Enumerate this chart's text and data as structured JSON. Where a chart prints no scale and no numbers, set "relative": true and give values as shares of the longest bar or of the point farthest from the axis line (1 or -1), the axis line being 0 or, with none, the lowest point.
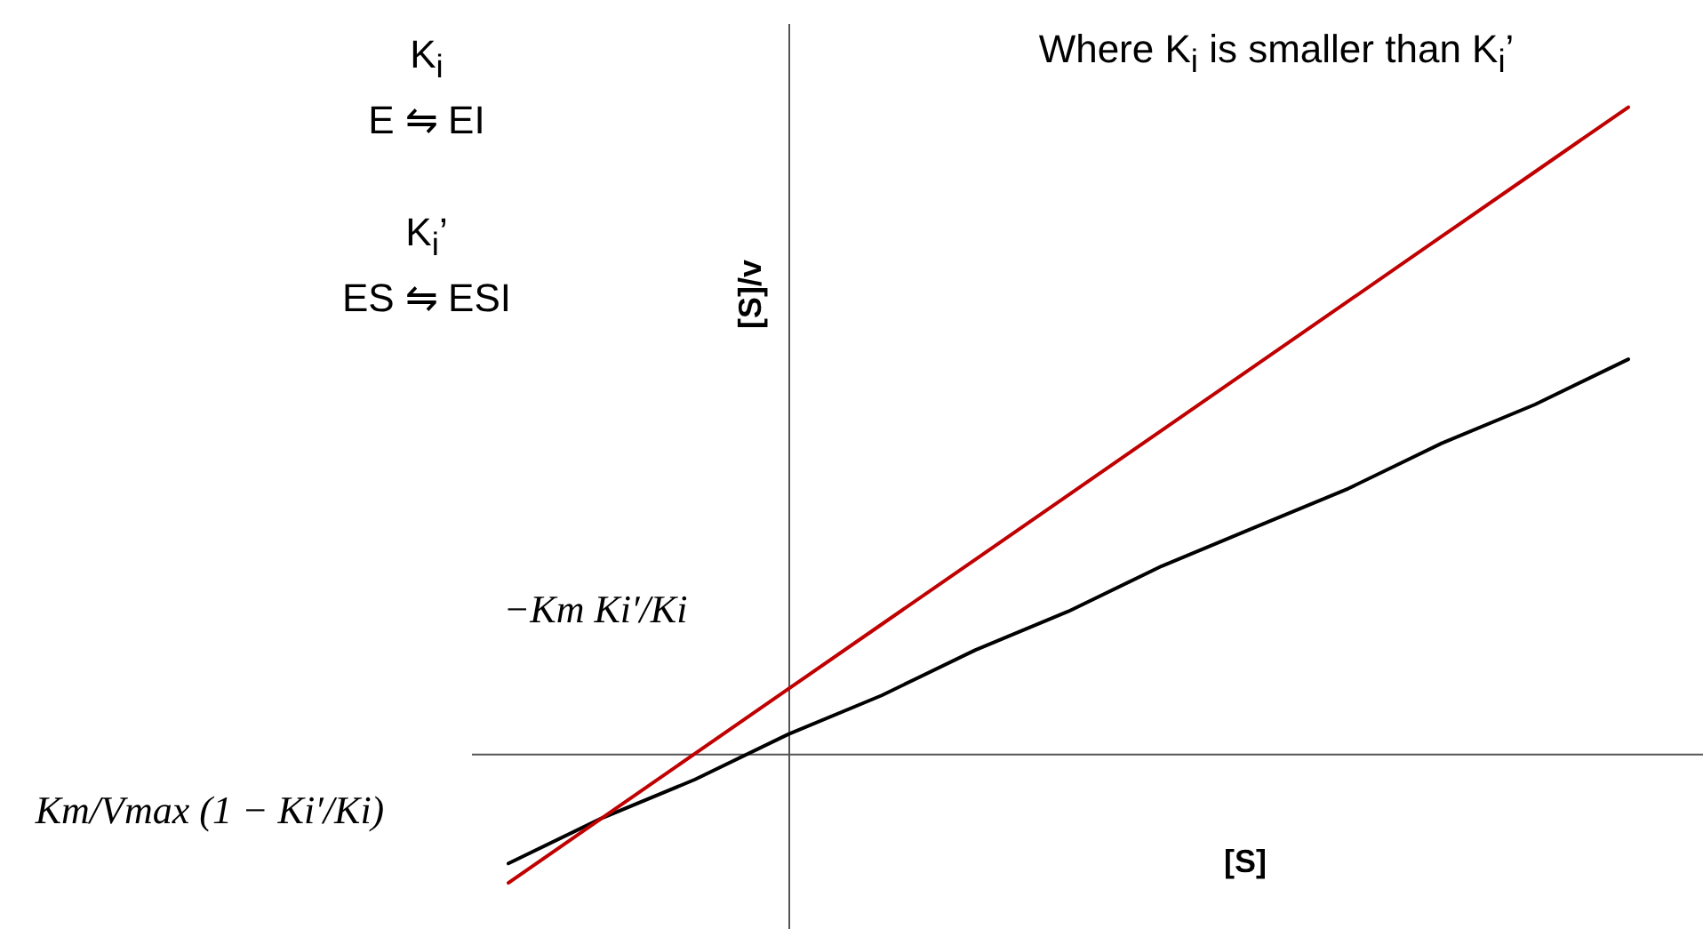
{
  "chart_data": {
    "type": "line",
    "title": "Where K$_{i}$ is smaller than K$_{i}$’",
    "xlabel": "[S]",
    "ylabel": "[S]/v",
    "relative": true,
    "categories": [
      null,
      null,
      null,
      null,
      null,
      null,
      null,
      null,
      null,
      null,
      null,
      null,
      null
    ],
    "series": [
      {
        "color": "#000000",
        "values": [
          -0.17,
          -0.1,
          -0.04,
          0.03,
          0.09,
          0.16,
          0.22,
          0.29,
          0.35,
          0.41,
          0.48,
          0.54,
          0.61
        ]
      },
      {
        "color": "#c00000",
        "values": [
          -0.2,
          -0.1,
          0.0,
          0.1,
          0.2,
          0.3,
          0.4,
          0.5,
          0.6,
          0.7,
          0.8,
          0.9,
          1.0
        ]
      }
    ],
    "annotations": [
      "K$_{i}$",
      "E ⇋ EI",
      "K$_{i}$’",
      "ES ⇋ ESI",
      "−Km Ki′/Ki",
      "Km/Vmax (1 − Ki′/Ki)"
    ]
  }
}
